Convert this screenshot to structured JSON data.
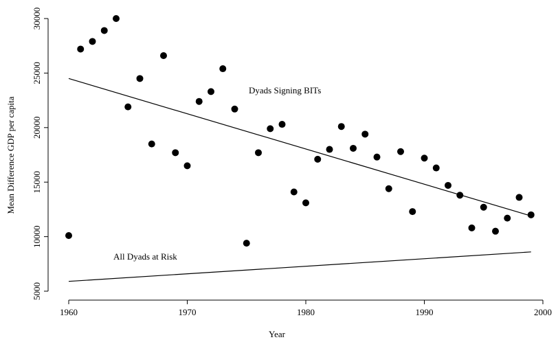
{
  "chart_data": {
    "type": "scatter",
    "x_label": "Year",
    "y_label": "Mean Difference GDP per capita",
    "xlim": [
      1960,
      2000
    ],
    "xticks": [
      1960,
      1970,
      1980,
      1990,
      2000
    ],
    "ylim": [
      5000,
      30000
    ],
    "yticks": [
      5000,
      10000,
      15000,
      20000,
      25000,
      30000
    ],
    "color": "#000000",
    "x": [
      1960,
      1961,
      1962,
      1963,
      1964,
      1965,
      1966,
      1967,
      1968,
      1969,
      1970,
      1971,
      1972,
      1973,
      1974,
      1975,
      1976,
      1977,
      1978,
      1979,
      1980,
      1981,
      1982,
      1983,
      1984,
      1985,
      1986,
      1987,
      1988,
      1989,
      1990,
      1991,
      1992,
      1993,
      1994,
      1995,
      1996,
      1997,
      1998,
      1999
    ],
    "values": [
      10100,
      27200,
      27900,
      28900,
      30000,
      21900,
      24500,
      18500,
      26600,
      17700,
      16500,
      22400,
      23300,
      25400,
      21700,
      9400,
      17700,
      19900,
      20300,
      14100,
      13100,
      17100,
      18000,
      20100,
      18100,
      19400,
      17300,
      14400,
      17800,
      12300,
      17200,
      16300,
      14700,
      13800,
      10800,
      12700,
      10500,
      11700,
      13600,
      12000
    ],
    "fit_lines": [
      {
        "name": "Dyads Signing BITs",
        "x": [
          1960,
          1999
        ],
        "values": [
          24500,
          11900
        ]
      },
      {
        "name": "All Dyads at Risk",
        "x": [
          1960,
          1999
        ],
        "values": [
          5900,
          8600
        ]
      }
    ]
  }
}
